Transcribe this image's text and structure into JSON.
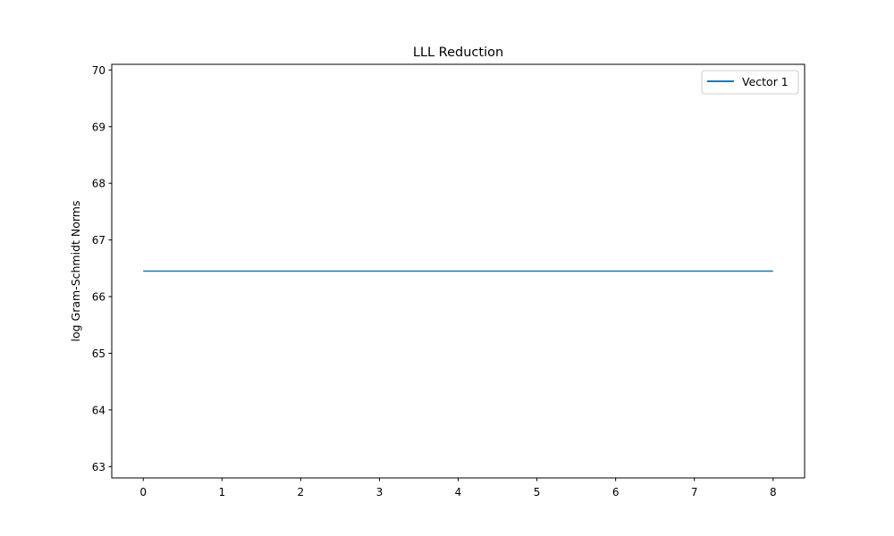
{
  "chart_data": {
    "type": "line",
    "title": "LLL Reduction",
    "xlabel": "",
    "ylabel": "log Gram-Schmidt Norms",
    "xlim": [
      -0.4,
      8.4
    ],
    "ylim": [
      62.8,
      70.1
    ],
    "xticks": [
      0,
      1,
      2,
      3,
      4,
      5,
      6,
      7,
      8
    ],
    "yticks": [
      63,
      64,
      65,
      66,
      67,
      68,
      69,
      70
    ],
    "grid": false,
    "legend_position": "top-right",
    "series": [
      {
        "name": "Vector 1",
        "color": "#1f77b4",
        "x": [
          0,
          1,
          2,
          3,
          4,
          5,
          6,
          7,
          8
        ],
        "y": [
          66.45,
          66.45,
          66.45,
          66.45,
          66.45,
          66.45,
          66.45,
          66.45,
          66.45
        ]
      }
    ]
  }
}
